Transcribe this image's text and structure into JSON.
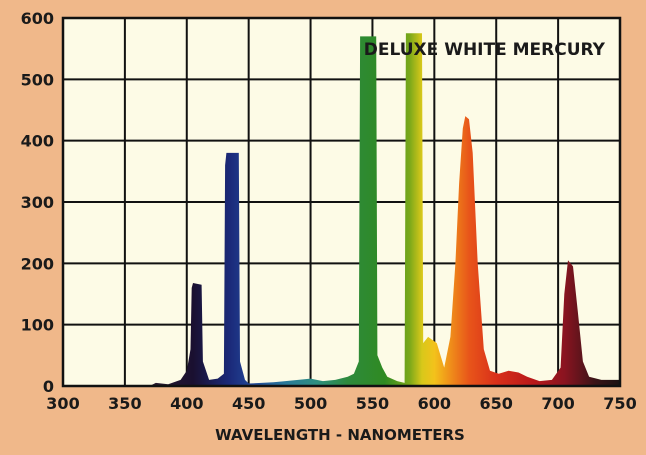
{
  "chart_data": {
    "type": "area",
    "title": "DELUXE WHITE MERCURY",
    "xlabel": "WAVELENGTH - NANOMETERS",
    "ylabel": "",
    "xlim": [
      300,
      750
    ],
    "ylim": [
      0,
      600
    ],
    "x_ticks": [
      300,
      350,
      400,
      450,
      500,
      550,
      600,
      650,
      700,
      750
    ],
    "y_ticks": [
      0,
      100,
      200,
      300,
      400,
      500,
      600
    ],
    "grid": true,
    "background_color": "#fdfbe6",
    "page_color": "#f0b88a",
    "series": [
      {
        "points": [
          [
            370,
            0
          ],
          [
            375,
            5
          ],
          [
            385,
            3
          ],
          [
            395,
            10
          ],
          [
            400,
            25
          ],
          [
            403,
            60
          ],
          [
            404,
            160
          ],
          [
            405,
            168
          ],
          [
            412,
            165
          ],
          [
            413,
            40
          ],
          [
            418,
            10
          ],
          [
            425,
            12
          ],
          [
            430,
            20
          ],
          [
            431,
            360
          ],
          [
            432,
            380
          ],
          [
            442,
            380
          ],
          [
            443,
            40
          ],
          [
            447,
            10
          ],
          [
            450,
            4
          ],
          [
            470,
            6
          ],
          [
            490,
            10
          ],
          [
            500,
            12
          ],
          [
            510,
            8
          ],
          [
            520,
            10
          ],
          [
            530,
            15
          ],
          [
            535,
            20
          ],
          [
            539,
            40
          ],
          [
            540,
            570
          ],
          [
            553,
            570
          ],
          [
            554,
            50
          ],
          [
            558,
            30
          ],
          [
            562,
            15
          ],
          [
            570,
            8
          ],
          [
            576,
            5
          ],
          [
            577,
            575
          ],
          [
            590,
            575
          ],
          [
            591,
            70
          ],
          [
            595,
            80
          ],
          [
            602,
            70
          ],
          [
            608,
            30
          ],
          [
            613,
            80
          ],
          [
            617,
            200
          ],
          [
            620,
            330
          ],
          [
            623,
            420
          ],
          [
            625,
            440
          ],
          [
            628,
            435
          ],
          [
            631,
            380
          ],
          [
            635,
            200
          ],
          [
            640,
            60
          ],
          [
            645,
            25
          ],
          [
            652,
            20
          ],
          [
            660,
            25
          ],
          [
            668,
            22
          ],
          [
            675,
            15
          ],
          [
            685,
            8
          ],
          [
            695,
            10
          ],
          [
            702,
            30
          ],
          [
            705,
            150
          ],
          [
            708,
            205
          ],
          [
            712,
            195
          ],
          [
            716,
            120
          ],
          [
            720,
            40
          ],
          [
            725,
            15
          ],
          [
            735,
            10
          ],
          [
            750,
            10
          ]
        ]
      }
    ],
    "color_stops": [
      [
        370,
        "#2a1a2e"
      ],
      [
        405,
        "#1a1030"
      ],
      [
        435,
        "#1b2a7a"
      ],
      [
        455,
        "#234a9a"
      ],
      [
        480,
        "#2a7a9a"
      ],
      [
        505,
        "#2e8f80"
      ],
      [
        530,
        "#2e8a3c"
      ],
      [
        560,
        "#2f8a22"
      ],
      [
        580,
        "#7aa81a"
      ],
      [
        590,
        "#d8c81a"
      ],
      [
        600,
        "#f3c21b"
      ],
      [
        612,
        "#f0921a"
      ],
      [
        628,
        "#e8551a"
      ],
      [
        650,
        "#d9301a"
      ],
      [
        680,
        "#b8181a"
      ],
      [
        705,
        "#8a1420"
      ],
      [
        730,
        "#3a1418"
      ],
      [
        750,
        "#1a1212"
      ]
    ]
  }
}
